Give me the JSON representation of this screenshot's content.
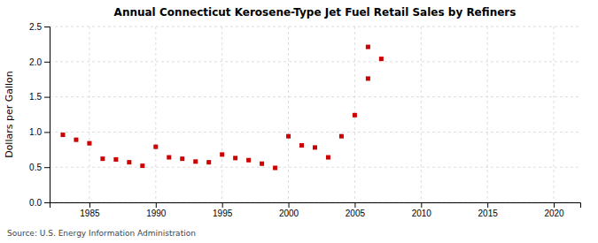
{
  "chart_data": {
    "type": "scatter",
    "title": "Annual Connecticut Kerosene-Type Jet Fuel Retail Sales by Refiners",
    "y_label": "Dollars per Gallon",
    "annotations": [
      "Source: U.S. Energy Information Administration"
    ],
    "series": [
      {
        "color": "#cc0000",
        "marker": "square",
        "x": [
          1983,
          1984,
          1985,
          1986,
          1987,
          1988,
          1989,
          1990,
          1991,
          1992,
          1993,
          1994,
          1995,
          1996,
          1997,
          1998,
          1999,
          2000,
          2001,
          2002,
          2003,
          2004,
          2005,
          2006,
          2007
        ],
        "values": [
          0.96,
          0.89,
          0.84,
          0.62,
          0.61,
          0.57,
          0.52,
          0.79,
          0.64,
          0.62,
          0.58,
          0.57,
          0.68,
          0.63,
          0.6,
          0.55,
          0.49,
          0.94,
          0.81,
          0.78,
          0.64,
          0.94,
          1.24,
          1.76,
          2.04
        ]
      },
      {
        "color": "#cc0000",
        "marker": "square",
        "x": [
          2006
        ],
        "values": [
          2.21
        ]
      }
    ],
    "xlim": [
      1982,
      2022
    ],
    "ylim": [
      0.0,
      2.5
    ],
    "xticks": [
      1985,
      1990,
      1995,
      2000,
      2005,
      2010,
      2015,
      2020
    ],
    "yticks": [
      {
        "value": 0.0,
        "label": "0.0"
      },
      0.5,
      {
        "value": 1.0,
        "label": "1.0"
      },
      1.5,
      {
        "value": 2.0,
        "label": "2.0"
      },
      2.5
    ],
    "grid": true
  }
}
